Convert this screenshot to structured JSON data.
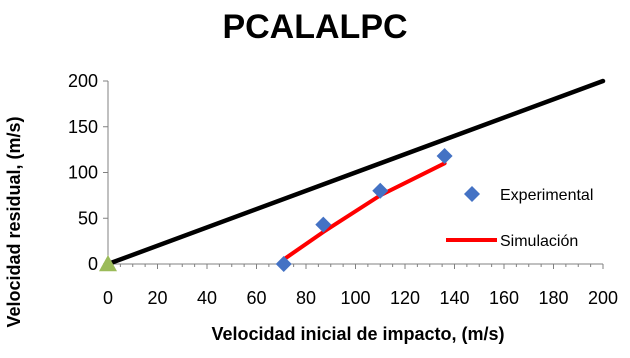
{
  "chart_data": {
    "type": "scatter",
    "title": "PCALALPC",
    "xlabel": "Velocidad  inicial de impacto, (m/s)",
    "ylabel": "Velocidad residual, (m/s)",
    "xlim": [
      0,
      200
    ],
    "ylim": [
      0,
      200
    ],
    "xticks": [
      "0",
      "20",
      "40",
      "60",
      "80",
      "100",
      "120",
      "140",
      "160",
      "180",
      "200"
    ],
    "yticks": [
      "0",
      "50",
      "100",
      "150",
      "200"
    ],
    "grid": false,
    "legend_position": "right",
    "series": [
      {
        "name": "Experimental",
        "kind": "markers",
        "marker": "diamond",
        "color": "#4472C4",
        "x": [
          71,
          87,
          110,
          136
        ],
        "y": [
          0,
          43,
          80,
          118
        ]
      },
      {
        "name": "Simulación",
        "kind": "line",
        "color": "#FF0000",
        "x": [
          71,
          87,
          110,
          136
        ],
        "y": [
          5,
          35,
          75,
          110
        ]
      },
      {
        "kind": "line",
        "color": "#000000",
        "x": [
          0,
          200
        ],
        "y": [
          0,
          200
        ]
      },
      {
        "kind": "markers",
        "marker": "triangle",
        "color": "#9BBB59",
        "x": [
          0
        ],
        "y": [
          0
        ]
      }
    ]
  }
}
